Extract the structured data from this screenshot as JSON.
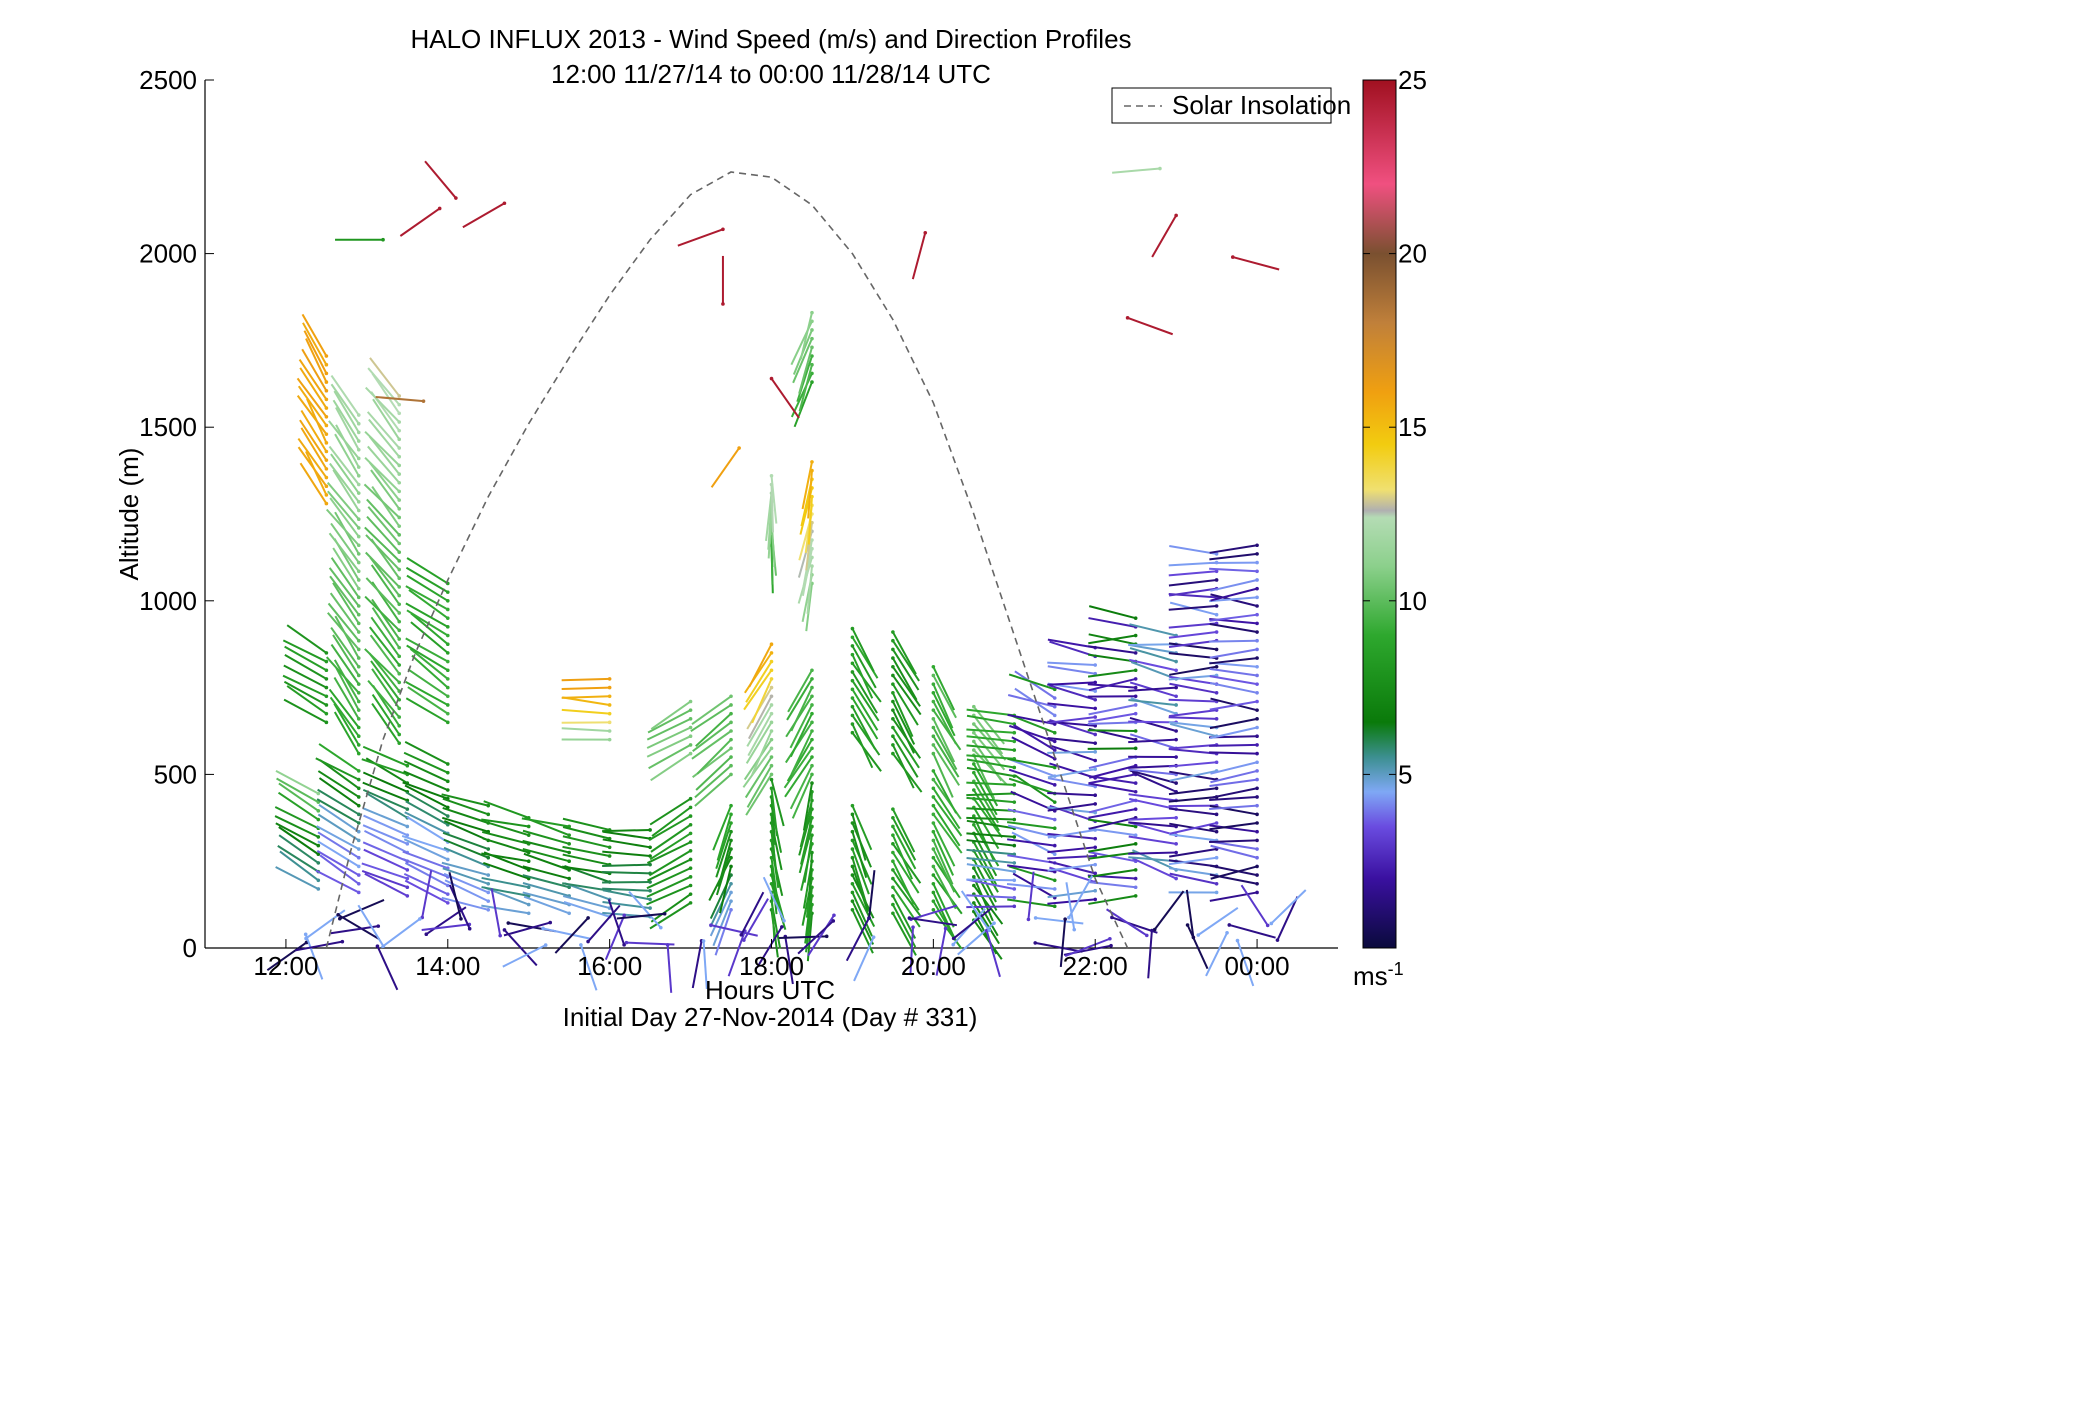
{
  "chart_data": {
    "type": "vector-field",
    "title": "HALO INFLUX 2013 - Wind Speed (m/s) and Direction Profiles",
    "subtitle": "12:00 11/27/14 to 00:00 11/28/14  UTC",
    "xlabel": "Hours UTC",
    "xlabel2": "Initial Day 27-Nov-2014 (Day # 331)",
    "ylabel": "Altitude (m)",
    "xlim": [
      11.0,
      25.0
    ],
    "ylim": [
      0,
      2500
    ],
    "x_ticks": [
      12,
      14,
      16,
      18,
      20,
      22,
      24
    ],
    "x_tick_labels": [
      "12:00",
      "14:00",
      "16:00",
      "18:00",
      "20:00",
      "22:00",
      "00:00"
    ],
    "y_ticks": [
      0,
      500,
      1000,
      1500,
      2000,
      2500
    ],
    "y_tick_labels": [
      "0",
      "500",
      "1000",
      "1500",
      "2000",
      "2500"
    ],
    "legend": {
      "entries": [
        "Solar Insolation"
      ],
      "placement": "top-right"
    },
    "colorbar": {
      "range": [
        0,
        25
      ],
      "ticks": [
        5,
        10,
        15,
        20,
        25
      ],
      "tick_labels": [
        "5",
        "10",
        "15",
        "20",
        "25"
      ],
      "unit_label": "ms",
      "unit_exponent": "-1",
      "stops": [
        {
          "v": 0,
          "color": "#0a0a3c"
        },
        {
          "v": 2,
          "color": "#3a10a0"
        },
        {
          "v": 3.5,
          "color": "#6a4ce0"
        },
        {
          "v": 4.5,
          "color": "#7fa8f5"
        },
        {
          "v": 5.5,
          "color": "#3c8f90"
        },
        {
          "v": 6.5,
          "color": "#0a7a0a"
        },
        {
          "v": 9,
          "color": "#2ea82e"
        },
        {
          "v": 11,
          "color": "#8cd08c"
        },
        {
          "v": 12.4,
          "color": "#b4dcb4"
        },
        {
          "v": 12.6,
          "color": "#b0b0b0"
        },
        {
          "v": 13.2,
          "color": "#f0e070"
        },
        {
          "v": 14.5,
          "color": "#f2cc10"
        },
        {
          "v": 16,
          "color": "#f0a010"
        },
        {
          "v": 18,
          "color": "#c0803a"
        },
        {
          "v": 20,
          "color": "#7a5030"
        },
        {
          "v": 22,
          "color": "#f05080"
        },
        {
          "v": 25,
          "color": "#a01020"
        }
      ]
    },
    "solar_insolation": {
      "style": "dashed",
      "color": "#666666",
      "x": [
        12.5,
        12.8,
        13.2,
        13.6,
        14.0,
        14.5,
        15.0,
        15.5,
        16.0,
        16.5,
        17.0,
        17.5,
        18.0,
        18.5,
        19.0,
        19.5,
        20.0,
        20.5,
        21.0,
        21.5,
        22.0,
        22.4
      ],
      "y": [
        0,
        280,
        600,
        850,
        1060,
        1300,
        1510,
        1700,
        1880,
        2040,
        2170,
        2235,
        2220,
        2140,
        2000,
        1810,
        1570,
        1250,
        900,
        550,
        200,
        0
      ]
    },
    "wind_profiles": [
      {
        "t": 12.4,
        "alt0": 170,
        "alt1": 440,
        "dir": 300,
        "spd": [
          5.0,
          7.0,
          11.0
        ],
        "spd_pattern": "low-to-high"
      },
      {
        "t": 12.5,
        "alt0": 650,
        "alt1": 840,
        "dir": 300,
        "spd": [
          8.0
        ]
      },
      {
        "t": 12.5,
        "alt0": 1280,
        "alt1": 1710,
        "dir": 330,
        "spd": [
          15.5,
          16.0
        ]
      },
      {
        "t": 12.9,
        "alt0": 160,
        "alt1": 500,
        "dir": 300,
        "spd": [
          3.5,
          5.0,
          9.0
        ],
        "spd_pattern": "low-to-high"
      },
      {
        "t": 12.9,
        "alt0": 560,
        "alt1": 1540,
        "dir": 325,
        "spd": [
          9.0,
          10.5,
          12.0
        ],
        "spd_pattern": "low-to-high"
      },
      {
        "t": 13.5,
        "alt0": 150,
        "alt1": 530,
        "dir": 295,
        "spd": [
          3.0,
          4.5,
          8.5
        ],
        "spd_pattern": "low-to-high"
      },
      {
        "t": 13.4,
        "alt0": 590,
        "alt1": 1590,
        "dir": 320,
        "spd": [
          9.0,
          10.0,
          12.5
        ],
        "spd_pattern": "low-to-high"
      },
      {
        "t": 14.0,
        "alt0": 130,
        "alt1": 520,
        "dir": 295,
        "spd": [
          3.5,
          5.0,
          8.0
        ],
        "spd_pattern": "low-to-high"
      },
      {
        "t": 14.0,
        "alt0": 650,
        "alt1": 1050,
        "dir": 305,
        "spd": [
          9.0
        ]
      },
      {
        "t": 14.5,
        "alt0": 110,
        "alt1": 400,
        "dir": 290,
        "spd": [
          4.0,
          6.0,
          8.0
        ],
        "spd_pattern": "low-to-high"
      },
      {
        "t": 15.0,
        "alt0": 100,
        "alt1": 380,
        "dir": 285,
        "spd": [
          4.5,
          7.0,
          8.0
        ],
        "spd_pattern": "low-to-high"
      },
      {
        "t": 15.5,
        "alt0": 100,
        "alt1": 360,
        "dir": 285,
        "spd": [
          4.5,
          7.0,
          8.0
        ],
        "spd_pattern": "low-to-high"
      },
      {
        "t": 16.0,
        "alt0": 90,
        "alt1": 350,
        "dir": 285,
        "spd": [
          4.5,
          7.0,
          8.0
        ],
        "spd_pattern": "low-to-high"
      },
      {
        "t": 16.5,
        "alt0": 90,
        "alt1": 340,
        "dir": 275,
        "spd": [
          5.0,
          7.0
        ],
        "spd_pattern": "low-to-high"
      },
      {
        "t": 16.0,
        "alt0": 600,
        "alt1": 770,
        "dir": 275,
        "spd": [
          11.0,
          15.0,
          16.0
        ],
        "spd_pattern": "low-to-high"
      },
      {
        "t": 17.0,
        "alt0": 130,
        "alt1": 420,
        "dir": 240,
        "spd": [
          8.0
        ]
      },
      {
        "t": 17.0,
        "alt0": 560,
        "alt1": 720,
        "dir": 240,
        "spd": [
          10.5
        ]
      },
      {
        "t": 17.5,
        "alt0": 110,
        "alt1": 420,
        "dir": 200,
        "spd": [
          4.0,
          7.0,
          9.0
        ],
        "spd_pattern": "low-to-high"
      },
      {
        "t": 17.5,
        "alt0": 500,
        "alt1": 720,
        "dir": 230,
        "spd": [
          10.0
        ]
      },
      {
        "t": 18.0,
        "alt0": 110,
        "alt1": 480,
        "dir": 170,
        "spd": [
          8.0
        ]
      },
      {
        "t": 18.0,
        "alt0": 500,
        "alt1": 870,
        "dir": 210,
        "spd": [
          10.0,
          12.0,
          15.5
        ],
        "spd_pattern": "low-to-high"
      },
      {
        "t": 18.0,
        "alt0": 1160,
        "alt1": 1370,
        "dir": 180,
        "spd": [
          9.0,
          11.0,
          12.5
        ],
        "spd_pattern": "low-to-high"
      },
      {
        "t": 18.5,
        "alt0": 100,
        "alt1": 480,
        "dir": 190,
        "spd": [
          8.0
        ]
      },
      {
        "t": 18.5,
        "alt0": 500,
        "alt1": 800,
        "dir": 210,
        "spd": [
          9.5
        ]
      },
      {
        "t": 18.5,
        "alt0": 1050,
        "alt1": 1410,
        "dir": 190,
        "spd": [
          11.0,
          15.5
        ],
        "spd_pattern": "low-to-high"
      },
      {
        "t": 18.5,
        "alt0": 1630,
        "alt1": 1830,
        "dir": 200,
        "spd": [
          9.0,
          11.0
        ],
        "spd_pattern": "low-to-high"
      },
      {
        "t": 19.0,
        "alt0": 110,
        "alt1": 420,
        "dir": 160,
        "spd": [
          8.0
        ]
      },
      {
        "t": 19.0,
        "alt0": 620,
        "alt1": 910,
        "dir": 150,
        "spd": [
          8.5
        ]
      },
      {
        "t": 19.5,
        "alt0": 100,
        "alt1": 400,
        "dir": 150,
        "spd": [
          8.5
        ]
      },
      {
        "t": 19.5,
        "alt0": 560,
        "alt1": 910,
        "dir": 150,
        "spd": [
          8.0
        ]
      },
      {
        "t": 20.0,
        "alt0": 110,
        "alt1": 520,
        "dir": 150,
        "spd": [
          9.0
        ]
      },
      {
        "t": 20.0,
        "alt0": 560,
        "alt1": 800,
        "dir": 150,
        "spd": [
          9.5
        ]
      },
      {
        "t": 20.5,
        "alt0": 80,
        "alt1": 560,
        "dir": 150,
        "spd": [
          7.0,
          9.5
        ],
        "spd_pattern": "low-to-high"
      },
      {
        "t": 20.5,
        "alt0": 570,
        "alt1": 700,
        "dir": 140,
        "spd": [
          10.5
        ]
      },
      {
        "t": 21.0,
        "alt0": 120,
        "alt1": 660,
        "dir": 275,
        "spd": [
          3.0,
          8.0,
          9.0
        ],
        "spd_pattern": "low-to-high"
      },
      {
        "t": 21.5,
        "alt0": 120,
        "alt1": 750,
        "dir": 290,
        "spd": [
          2.0,
          4.0,
          8.0
        ],
        "spd_pattern": "mixed"
      },
      {
        "t": 22.0,
        "alt0": 140,
        "alt1": 870,
        "dir": 275,
        "spd": [
          2.0,
          3.0,
          4.5
        ],
        "spd_pattern": "mixed"
      },
      {
        "t": 22.5,
        "alt0": 150,
        "alt1": 950,
        "dir": 270,
        "spd": [
          2.0,
          4.0,
          7.0
        ],
        "spd_pattern": "mixed"
      },
      {
        "t": 23.0,
        "alt0": 200,
        "alt1": 910,
        "dir": 280,
        "spd": [
          1.5,
          3.5,
          5.0
        ],
        "spd_pattern": "mixed"
      },
      {
        "t": 23.5,
        "alt0": 160,
        "alt1": 1130,
        "dir": 270,
        "spd": [
          1.0,
          3.0,
          4.5
        ],
        "spd_pattern": "mixed"
      },
      {
        "t": 24.0,
        "alt0": 160,
        "alt1": 1170,
        "dir": 270,
        "spd": [
          1.0,
          2.0,
          4.0
        ],
        "spd_pattern": "mixed"
      }
    ],
    "near_surface_row": {
      "alt0": 5,
      "alt1": 100,
      "x0": 12.2,
      "x1": 24.3,
      "spd": [
        0.5,
        1.5,
        3.0,
        4.5
      ],
      "dir": "variable"
    },
    "isolated_vectors": [
      {
        "t": 13.2,
        "alt": 2040,
        "dir": 270,
        "spd": 8.0
      },
      {
        "t": 13.7,
        "alt": 1575,
        "dir": 275,
        "spd": 18.5
      },
      {
        "t": 13.9,
        "alt": 2130,
        "dir": 235,
        "spd": 24.5
      },
      {
        "t": 14.1,
        "alt": 2160,
        "dir": 320,
        "spd": 24.5
      },
      {
        "t": 14.7,
        "alt": 2145,
        "dir": 240,
        "spd": 24.5
      },
      {
        "t": 17.4,
        "alt": 2070,
        "dir": 250,
        "spd": 24.5
      },
      {
        "t": 17.4,
        "alt": 1855,
        "dir": 0,
        "spd": 24.5
      },
      {
        "t": 17.6,
        "alt": 1440,
        "dir": 215,
        "spd": 16.0
      },
      {
        "t": 18.0,
        "alt": 1640,
        "dir": 145,
        "spd": 24.5
      },
      {
        "t": 19.9,
        "alt": 2060,
        "dir": 195,
        "spd": 24.5
      },
      {
        "t": 22.4,
        "alt": 1815,
        "dir": 110,
        "spd": 24.5
      },
      {
        "t": 22.8,
        "alt": 2245,
        "dir": 265,
        "spd": 12.0
      },
      {
        "t": 23.0,
        "alt": 2110,
        "dir": 210,
        "spd": 24.5
      },
      {
        "t": 23.7,
        "alt": 1990,
        "dir": 105,
        "spd": 24.5
      }
    ]
  }
}
